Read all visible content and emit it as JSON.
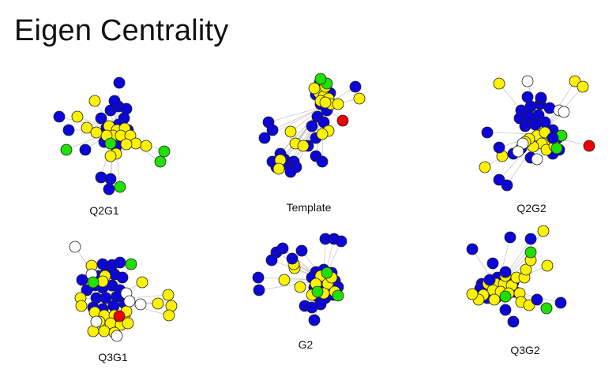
{
  "title": "Eigen Centrality",
  "node_colors": {
    "blue": "#0b05d8",
    "yellow": "#fef200",
    "green": "#20e000",
    "red": "#f00000",
    "white": "#ffffff",
    "edge": "#c8c8c8",
    "stroke": "#222222"
  },
  "graphs": [
    {
      "id": "q2g1",
      "label": "Q2G1"
    },
    {
      "id": "template",
      "label": "Template"
    },
    {
      "id": "q2g2",
      "label": "Q2G2"
    },
    {
      "id": "q3g1",
      "label": "Q3G1"
    },
    {
      "id": "g2",
      "label": "G2"
    },
    {
      "id": "q3g2",
      "label": "Q3G2"
    }
  ]
}
